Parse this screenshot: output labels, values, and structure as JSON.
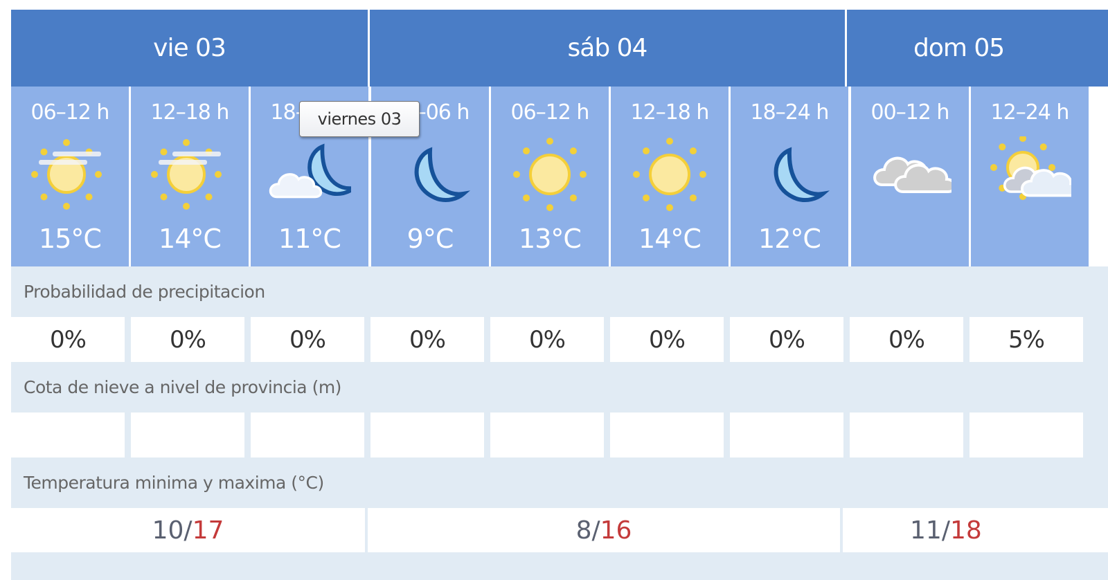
{
  "days": [
    {
      "label": "vie 03",
      "min": "10",
      "max": "17"
    },
    {
      "label": "sáb 04",
      "min": "8",
      "max": "16"
    },
    {
      "label": "dom 05",
      "min": "11",
      "max": "18"
    }
  ],
  "periods": [
    {
      "hours": "06–12 h",
      "icon": "sun-haze-icon",
      "temp": "15°C",
      "precip": "0%",
      "snow": ""
    },
    {
      "hours": "12–18 h",
      "icon": "sun-haze-icon",
      "temp": "14°C",
      "precip": "0%",
      "snow": ""
    },
    {
      "hours": "18–24 h",
      "icon": "moon-cloud-icon",
      "temp": "11°C",
      "precip": "0%",
      "snow": ""
    },
    {
      "hours": "00–06 h",
      "icon": "moon-icon",
      "temp": "9°C",
      "precip": "0%",
      "snow": ""
    },
    {
      "hours": "06–12 h",
      "icon": "sun-icon",
      "temp": "13°C",
      "precip": "0%",
      "snow": ""
    },
    {
      "hours": "12–18 h",
      "icon": "sun-icon",
      "temp": "14°C",
      "precip": "0%",
      "snow": ""
    },
    {
      "hours": "18–24 h",
      "icon": "moon-icon",
      "temp": "12°C",
      "precip": "0%",
      "snow": ""
    },
    {
      "hours": "00–12 h",
      "icon": "overcast-icon",
      "temp": "",
      "precip": "0%",
      "snow": ""
    },
    {
      "hours": "12–24 h",
      "icon": "sun-cloud-icon",
      "temp": "",
      "precip": "5%",
      "snow": ""
    }
  ],
  "labels": {
    "precip": "Probabilidad de precipitacion",
    "snow": "Cota de nieve a nivel de provincia (m)",
    "minmax": "Temperatura minima y maxima (°C)",
    "sep": " / "
  },
  "tooltip": "viernes 03",
  "colors": {
    "header": "#4a7dc6",
    "period": "#8db0e8",
    "label_bg": "#e1ebf4",
    "max": "#c43a3a",
    "min": "#5a6070"
  }
}
